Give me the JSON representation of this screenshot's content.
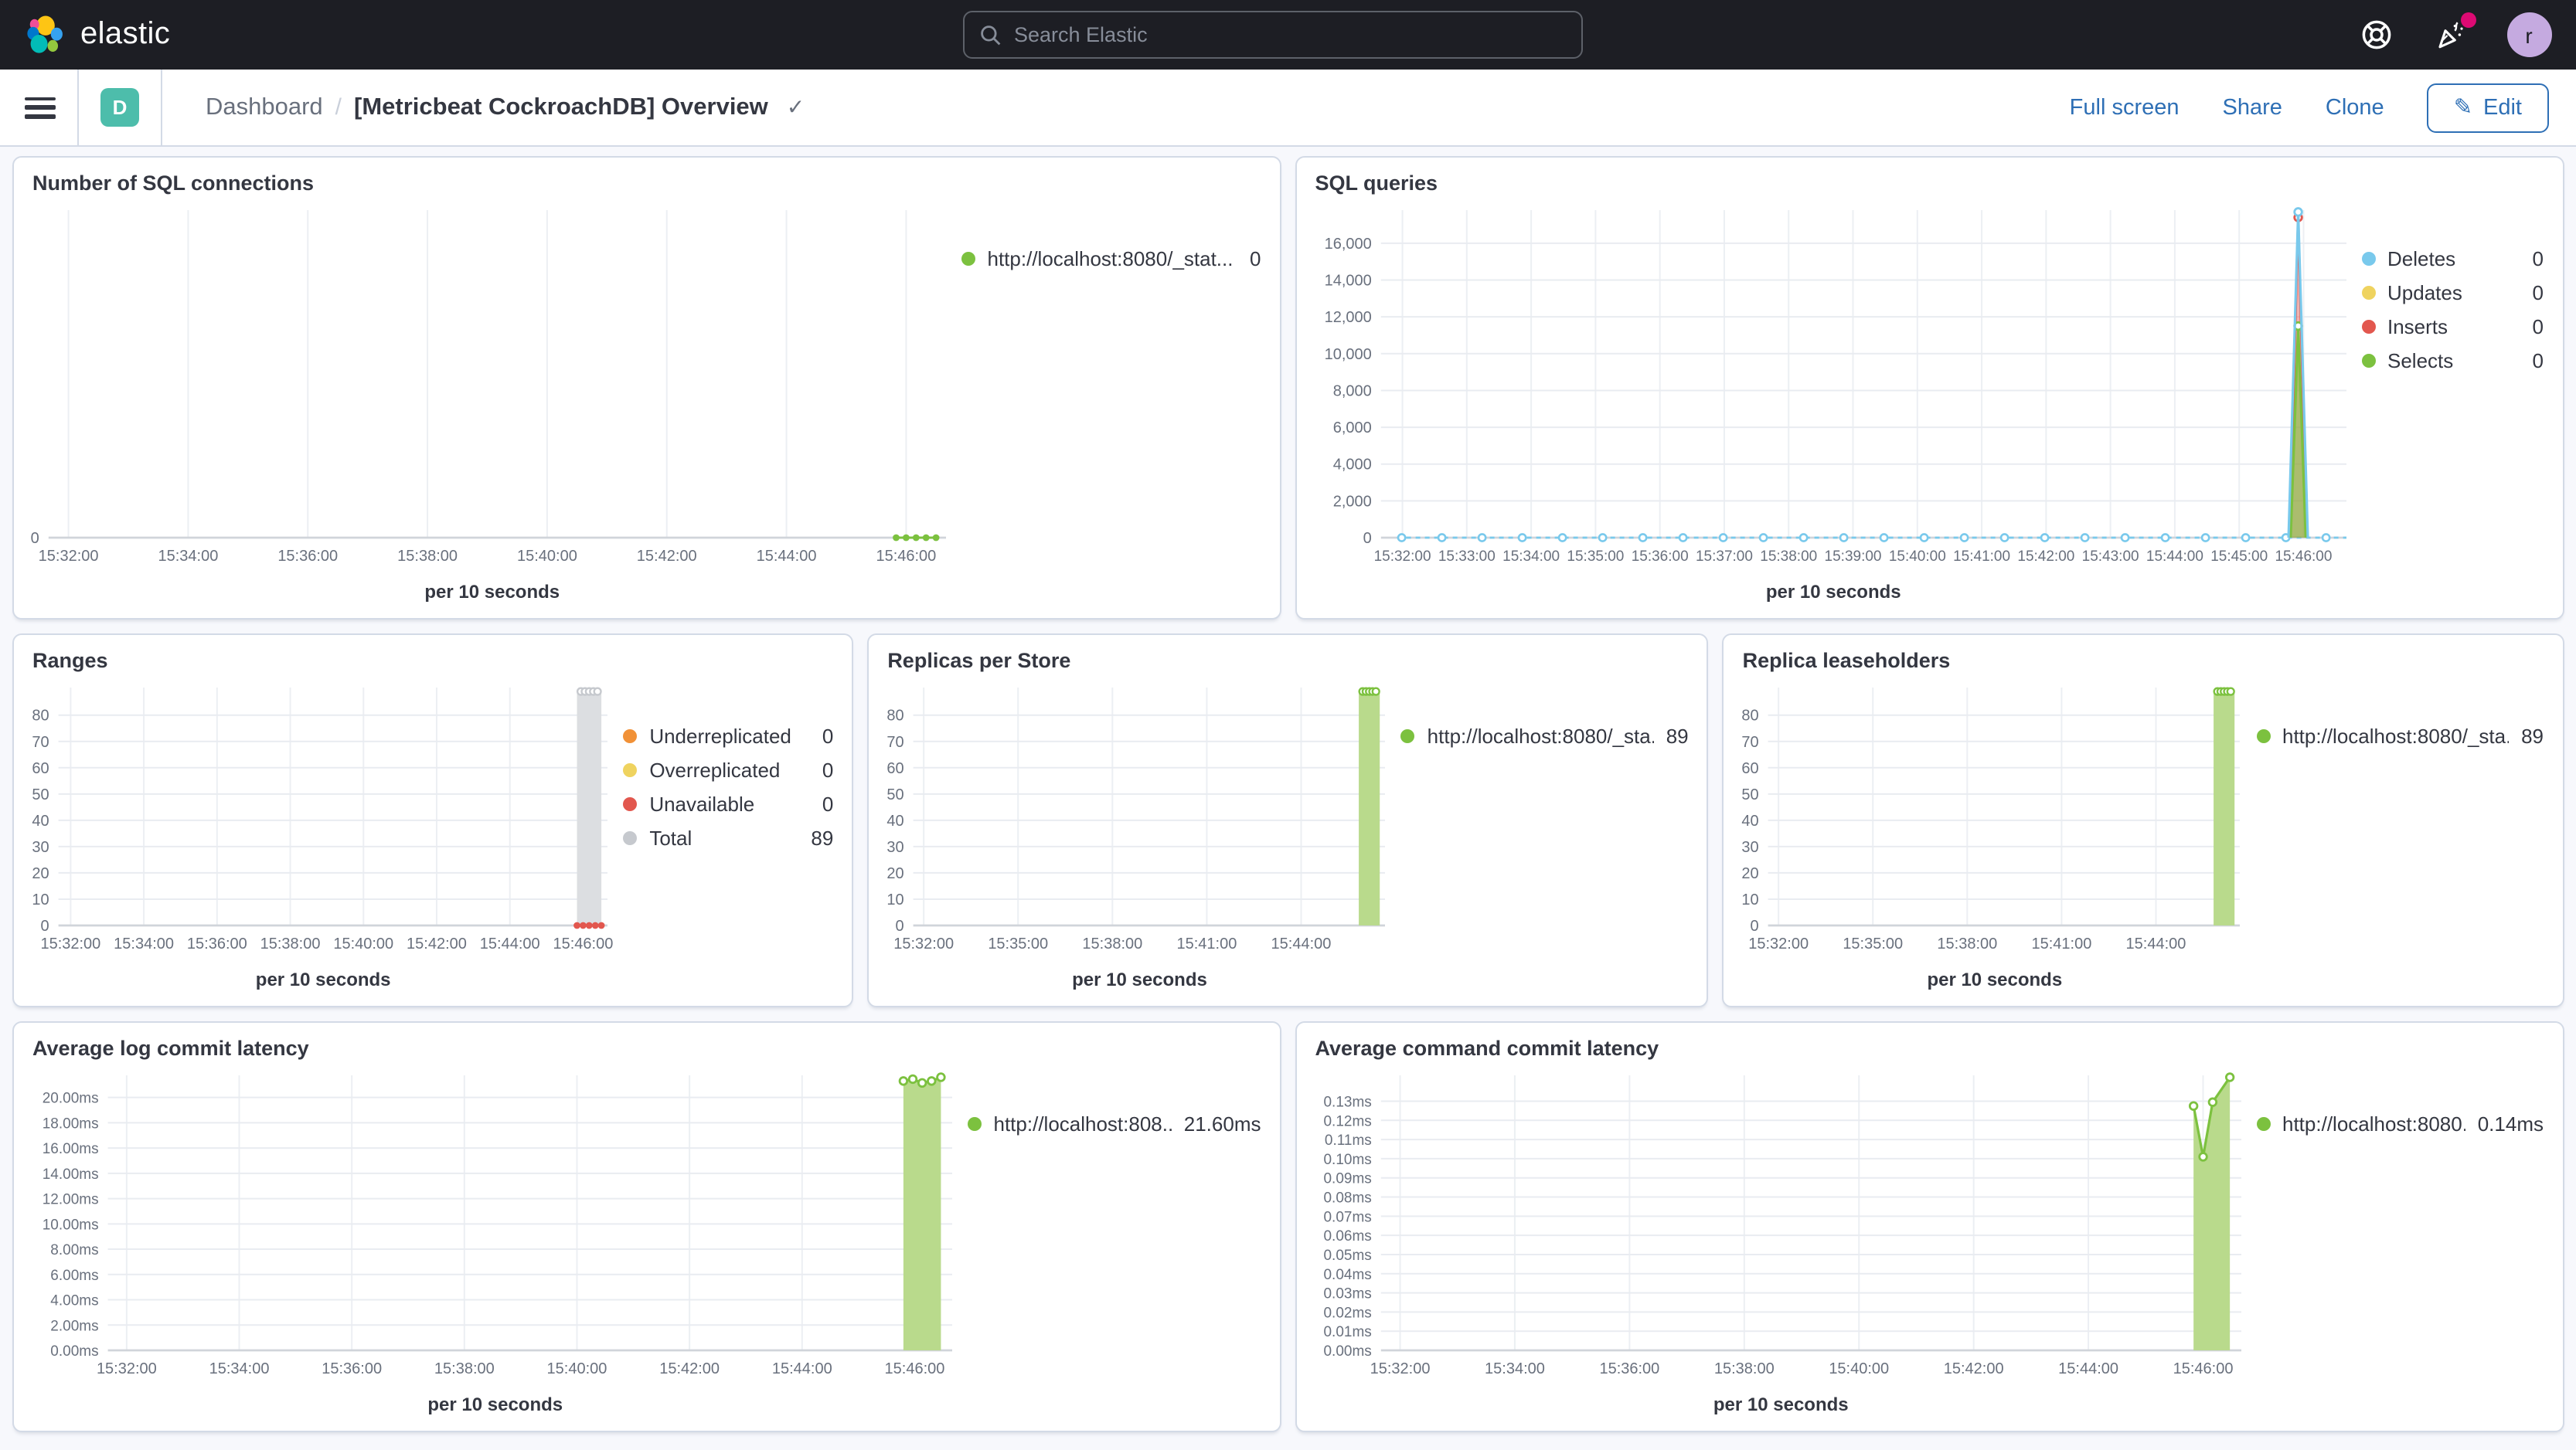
{
  "header": {
    "brand": "elastic",
    "search_placeholder": "Search Elastic",
    "avatar_initial": "r"
  },
  "toolbar": {
    "breadcrumb_root": "Dashboard",
    "title": "[Metricbeat CockroachDB] Overview",
    "full_screen_label": "Full screen",
    "share_label": "Share",
    "clone_label": "Clone",
    "edit_label": "Edit"
  },
  "icons": {
    "title_check": "✓",
    "edit_pencil": "✎"
  },
  "colors": {
    "header_bg": "#1d1e24",
    "link_blue": "#2e6fb5",
    "badge_teal": "#4dbdab",
    "notification_pink": "#dd0a73",
    "series_green": "#7cc13f",
    "series_blue": "#79c9ec",
    "series_yellow": "#efd35f",
    "series_red": "#e2574e",
    "series_orange": "#f19137",
    "series_gray": "#c6c9ce"
  },
  "chart_data": [
    {
      "id": "sql-connections",
      "type": "line",
      "title": "Number of SQL connections",
      "xlabel": "per 10 seconds",
      "x_range": [
        "15:31:40",
        "15:46:40"
      ],
      "ylim": [
        0,
        8
      ],
      "y_ticks": [
        {
          "label": "0",
          "value": 0
        }
      ],
      "x_ticks": [
        {
          "label": "15:32:00"
        },
        {
          "label": "15:34:00"
        },
        {
          "label": "15:36:00"
        },
        {
          "label": "15:38:00"
        },
        {
          "label": "15:40:00"
        },
        {
          "label": "15:42:00"
        },
        {
          "label": "15:44:00"
        },
        {
          "label": "15:46:00"
        }
      ],
      "legend": [
        {
          "label": "http://localhost:8080/_stat...",
          "value": "0",
          "color": "#7cc13f"
        }
      ],
      "series": [
        {
          "name": "connections",
          "render": "dots",
          "color": "#7cc13f",
          "points": [
            [
              "15:45:50",
              0
            ],
            [
              "15:46:00",
              0
            ],
            [
              "15:46:10",
              0
            ],
            [
              "15:46:20",
              0
            ],
            [
              "15:46:30",
              0
            ]
          ]
        }
      ]
    },
    {
      "id": "sql-queries",
      "type": "area",
      "title": "SQL queries",
      "xlabel": "per 10 seconds",
      "x_range": [
        "15:31:40",
        "15:46:40"
      ],
      "ylim": [
        0,
        17800
      ],
      "y_ticks": [
        {
          "label": "16,000",
          "value": 16000
        },
        {
          "label": "14,000",
          "value": 14000
        },
        {
          "label": "12,000",
          "value": 12000
        },
        {
          "label": "10,000",
          "value": 10000
        },
        {
          "label": "8,000",
          "value": 8000
        },
        {
          "label": "6,000",
          "value": 6000
        },
        {
          "label": "4,000",
          "value": 4000
        },
        {
          "label": "2,000",
          "value": 2000
        },
        {
          "label": "0",
          "value": 0
        }
      ],
      "x_ticks": [
        {
          "label": "15:32:00"
        },
        {
          "label": "15:33:00"
        },
        {
          "label": "15:34:00"
        },
        {
          "label": "15:35:00"
        },
        {
          "label": "15:36:00"
        },
        {
          "label": "15:37:00"
        },
        {
          "label": "15:38:00"
        },
        {
          "label": "15:39:00"
        },
        {
          "label": "15:40:00"
        },
        {
          "label": "15:41:00"
        },
        {
          "label": "15:42:00"
        },
        {
          "label": "15:43:00"
        },
        {
          "label": "15:44:00"
        },
        {
          "label": "15:45:00"
        },
        {
          "label": "15:46:00"
        }
      ],
      "legend": [
        {
          "label": "Deletes",
          "value": "0",
          "color": "#79c9ec"
        },
        {
          "label": "Updates",
          "value": "0",
          "color": "#efd35f"
        },
        {
          "label": "Inserts",
          "value": "0",
          "color": "#e2574e"
        },
        {
          "label": "Selects",
          "value": "0",
          "color": "#7cc13f"
        }
      ],
      "series": [
        {
          "name": "Deletes baseline",
          "render": "dashline",
          "color": "#79c9ec",
          "value": 0,
          "x0": "15:31:55",
          "x1": "15:46:40"
        },
        {
          "name": "Inserts",
          "render": "area",
          "color": "#e2574e",
          "fill": "rgba(226,87,78,0.45)",
          "points": [
            [
              "15:45:47",
              0
            ],
            [
              "15:45:55",
              17400
            ],
            [
              "15:46:03",
              0
            ]
          ]
        },
        {
          "name": "Selects",
          "render": "area",
          "color": "#7cc13f",
          "fill": "rgba(124,193,66,0.6)",
          "points": [
            [
              "15:45:48",
              0
            ],
            [
              "15:45:55",
              11500
            ],
            [
              "15:46:02",
              0
            ]
          ]
        },
        {
          "name": "Deletes",
          "render": "line",
          "color": "#79c9ec",
          "points": [
            [
              "15:45:46",
              0
            ],
            [
              "15:45:55",
              17700
            ],
            [
              "15:46:04",
              0
            ]
          ]
        }
      ]
    },
    {
      "id": "ranges",
      "type": "bar",
      "title": "Ranges",
      "xlabel": "per 10 seconds",
      "x_range": [
        "15:31:40",
        "15:46:40"
      ],
      "ylim": [
        0,
        90.5
      ],
      "y_ticks": [
        {
          "label": "80",
          "value": 80
        },
        {
          "label": "70",
          "value": 70
        },
        {
          "label": "60",
          "value": 60
        },
        {
          "label": "50",
          "value": 50
        },
        {
          "label": "40",
          "value": 40
        },
        {
          "label": "30",
          "value": 30
        },
        {
          "label": "20",
          "value": 20
        },
        {
          "label": "10",
          "value": 10
        },
        {
          "label": "0",
          "value": 0
        }
      ],
      "x_ticks": [
        {
          "label": "15:32:00"
        },
        {
          "label": "15:34:00"
        },
        {
          "label": "15:36:00"
        },
        {
          "label": "15:38:00"
        },
        {
          "label": "15:40:00"
        },
        {
          "label": "15:42:00"
        },
        {
          "label": "15:44:00"
        },
        {
          "label": "15:46:00"
        }
      ],
      "legend": [
        {
          "label": "Underreplicated",
          "value": "0",
          "color": "#f19137"
        },
        {
          "label": "Overreplicated",
          "value": "0",
          "color": "#efd35f"
        },
        {
          "label": "Unavailable",
          "value": "0",
          "color": "#e2574e"
        },
        {
          "label": "Total",
          "value": "89",
          "color": "#c6c9ce"
        }
      ],
      "series": [
        {
          "name": "Total",
          "render": "bar",
          "color": "#c6c9ce",
          "fill": "#dcdee1",
          "x0": "15:45:50",
          "x1": "15:46:30",
          "value": 89,
          "top_markers": 5
        },
        {
          "name": "Unavailable",
          "render": "dots",
          "color": "#e2574e",
          "points": [
            [
              "15:45:50",
              0
            ],
            [
              "15:46:00",
              0
            ],
            [
              "15:46:10",
              0
            ],
            [
              "15:46:20",
              0
            ],
            [
              "15:46:30",
              0
            ]
          ]
        }
      ]
    },
    {
      "id": "replicas-per-store",
      "type": "bar",
      "title": "Replicas per Store",
      "xlabel": "per 10 seconds",
      "x_range": [
        "15:31:40",
        "15:46:40"
      ],
      "ylim": [
        0,
        90.5
      ],
      "y_ticks": [
        {
          "label": "80",
          "value": 80
        },
        {
          "label": "70",
          "value": 70
        },
        {
          "label": "60",
          "value": 60
        },
        {
          "label": "50",
          "value": 50
        },
        {
          "label": "40",
          "value": 40
        },
        {
          "label": "30",
          "value": 30
        },
        {
          "label": "20",
          "value": 20
        },
        {
          "label": "10",
          "value": 10
        },
        {
          "label": "0",
          "value": 0
        }
      ],
      "x_ticks": [
        {
          "label": "15:32:00"
        },
        {
          "label": "15:35:00"
        },
        {
          "label": "15:38:00"
        },
        {
          "label": "15:41:00"
        },
        {
          "label": "15:44:00"
        }
      ],
      "legend": [
        {
          "label": "http://localhost:8080/_sta...",
          "value": "89",
          "color": "#7cc13f"
        }
      ],
      "series": [
        {
          "name": "replicas",
          "render": "bar",
          "color": "#7cc13f",
          "fill": "#b9da8c",
          "x0": "15:45:50",
          "x1": "15:46:30",
          "value": 89,
          "top_markers": 5
        }
      ]
    },
    {
      "id": "replica-leaseholders",
      "type": "bar",
      "title": "Replica leaseholders",
      "xlabel": "per 10 seconds",
      "x_range": [
        "15:31:40",
        "15:46:40"
      ],
      "ylim": [
        0,
        90.5
      ],
      "y_ticks": [
        {
          "label": "80",
          "value": 80
        },
        {
          "label": "70",
          "value": 70
        },
        {
          "label": "60",
          "value": 60
        },
        {
          "label": "50",
          "value": 50
        },
        {
          "label": "40",
          "value": 40
        },
        {
          "label": "30",
          "value": 30
        },
        {
          "label": "20",
          "value": 20
        },
        {
          "label": "10",
          "value": 10
        },
        {
          "label": "0",
          "value": 0
        }
      ],
      "x_ticks": [
        {
          "label": "15:32:00"
        },
        {
          "label": "15:35:00"
        },
        {
          "label": "15:38:00"
        },
        {
          "label": "15:41:00"
        },
        {
          "label": "15:44:00"
        }
      ],
      "legend": [
        {
          "label": "http://localhost:8080/_sta...",
          "value": "89",
          "color": "#7cc13f"
        }
      ],
      "series": [
        {
          "name": "leaseholders",
          "render": "bar",
          "color": "#7cc13f",
          "fill": "#b9da8c",
          "x0": "15:45:50",
          "x1": "15:46:30",
          "value": 89,
          "top_markers": 5
        }
      ]
    },
    {
      "id": "avg-log-commit-latency",
      "type": "area",
      "title": "Average log commit latency",
      "xlabel": "per 10 seconds",
      "x_range": [
        "15:31:40",
        "15:46:40"
      ],
      "ylim": [
        0,
        21.75
      ],
      "y_ticks": [
        {
          "label": "20.00ms",
          "value": 20
        },
        {
          "label": "18.00ms",
          "value": 18
        },
        {
          "label": "16.00ms",
          "value": 16
        },
        {
          "label": "14.00ms",
          "value": 14
        },
        {
          "label": "12.00ms",
          "value": 12
        },
        {
          "label": "10.00ms",
          "value": 10
        },
        {
          "label": "8.00ms",
          "value": 8
        },
        {
          "label": "6.00ms",
          "value": 6
        },
        {
          "label": "4.00ms",
          "value": 4
        },
        {
          "label": "2.00ms",
          "value": 2
        },
        {
          "label": "0.00ms",
          "value": 0
        }
      ],
      "x_ticks": [
        {
          "label": "15:32:00"
        },
        {
          "label": "15:34:00"
        },
        {
          "label": "15:36:00"
        },
        {
          "label": "15:38:00"
        },
        {
          "label": "15:40:00"
        },
        {
          "label": "15:42:00"
        },
        {
          "label": "15:44:00"
        },
        {
          "label": "15:46:00"
        }
      ],
      "legend": [
        {
          "label": "http://localhost:808...",
          "value": "21.60ms",
          "color": "#7cc13f"
        }
      ],
      "series": [
        {
          "name": "log commit latency",
          "render": "area",
          "color": "#7cc13f",
          "fill": "#b9da8c",
          "points": [
            [
              "15:45:48",
              21.3
            ],
            [
              "15:45:58",
              21.45
            ],
            [
              "15:46:08",
              21.15
            ],
            [
              "15:46:18",
              21.3
            ],
            [
              "15:46:28",
              21.6
            ]
          ]
        }
      ]
    },
    {
      "id": "avg-command-commit-latency",
      "type": "area",
      "title": "Average command commit latency",
      "xlabel": "per 10 seconds",
      "x_range": [
        "15:31:40",
        "15:46:40"
      ],
      "ylim": [
        0,
        0.1435
      ],
      "y_ticks": [
        {
          "label": "0.13ms",
          "value": 0.13
        },
        {
          "label": "0.12ms",
          "value": 0.12
        },
        {
          "label": "0.11ms",
          "value": 0.11
        },
        {
          "label": "0.10ms",
          "value": 0.1
        },
        {
          "label": "0.09ms",
          "value": 0.09
        },
        {
          "label": "0.08ms",
          "value": 0.08
        },
        {
          "label": "0.07ms",
          "value": 0.07
        },
        {
          "label": "0.06ms",
          "value": 0.06
        },
        {
          "label": "0.05ms",
          "value": 0.05
        },
        {
          "label": "0.04ms",
          "value": 0.04
        },
        {
          "label": "0.03ms",
          "value": 0.03
        },
        {
          "label": "0.02ms",
          "value": 0.02
        },
        {
          "label": "0.01ms",
          "value": 0.01
        },
        {
          "label": "0.00ms",
          "value": 0
        }
      ],
      "x_ticks": [
        {
          "label": "15:32:00"
        },
        {
          "label": "15:34:00"
        },
        {
          "label": "15:36:00"
        },
        {
          "label": "15:38:00"
        },
        {
          "label": "15:40:00"
        },
        {
          "label": "15:42:00"
        },
        {
          "label": "15:44:00"
        },
        {
          "label": "15:46:00"
        }
      ],
      "legend": [
        {
          "label": "http://localhost:8080...",
          "value": "0.14ms",
          "color": "#7cc13f"
        }
      ],
      "series": [
        {
          "name": "command commit latency",
          "render": "area",
          "color": "#7cc13f",
          "fill": "#b9da8c",
          "points": [
            [
              "15:45:50",
              0.1275
            ],
            [
              "15:46:00",
              0.101
            ],
            [
              "15:46:10",
              0.1295
            ],
            [
              "15:46:28",
              0.1425
            ]
          ]
        }
      ]
    }
  ]
}
